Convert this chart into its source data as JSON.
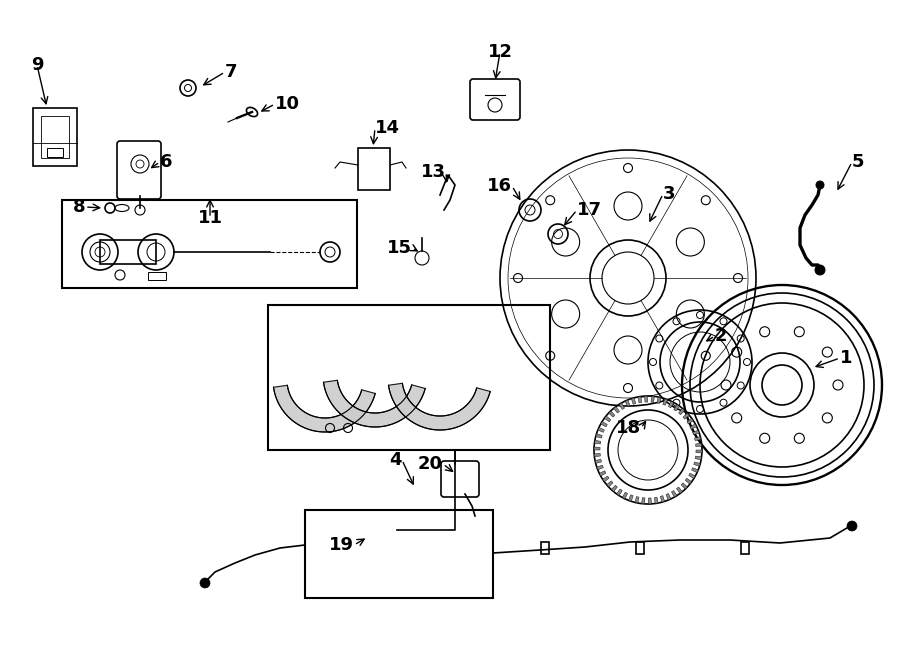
{
  "background_color": "#ffffff",
  "line_color": "#000000",
  "fig_width": 9.0,
  "fig_height": 6.61,
  "dpi": 100,
  "annotations": [
    [
      "1",
      840,
      358,
      812,
      368
    ],
    [
      "2",
      715,
      336,
      703,
      343
    ],
    [
      "3",
      663,
      194,
      648,
      225
    ],
    [
      "4",
      402,
      460,
      415,
      488
    ],
    [
      "5",
      852,
      162,
      836,
      193
    ],
    [
      "6",
      160,
      162,
      148,
      170
    ],
    [
      "7",
      225,
      72,
      200,
      87
    ],
    [
      "8",
      85,
      207,
      104,
      208
    ],
    [
      "9",
      37,
      65,
      47,
      108
    ],
    [
      "10",
      275,
      104,
      258,
      113
    ],
    [
      "11",
      210,
      218,
      210,
      196
    ],
    [
      "12",
      500,
      52,
      495,
      82
    ],
    [
      "13",
      446,
      172,
      447,
      186
    ],
    [
      "14",
      375,
      128,
      373,
      148
    ],
    [
      "15",
      412,
      248,
      421,
      253
    ],
    [
      "16",
      512,
      186,
      522,
      203
    ],
    [
      "17",
      577,
      210,
      562,
      228
    ],
    [
      "18",
      641,
      428,
      648,
      418
    ],
    [
      "19",
      354,
      545,
      368,
      537
    ],
    [
      "20",
      443,
      464,
      456,
      474
    ]
  ]
}
